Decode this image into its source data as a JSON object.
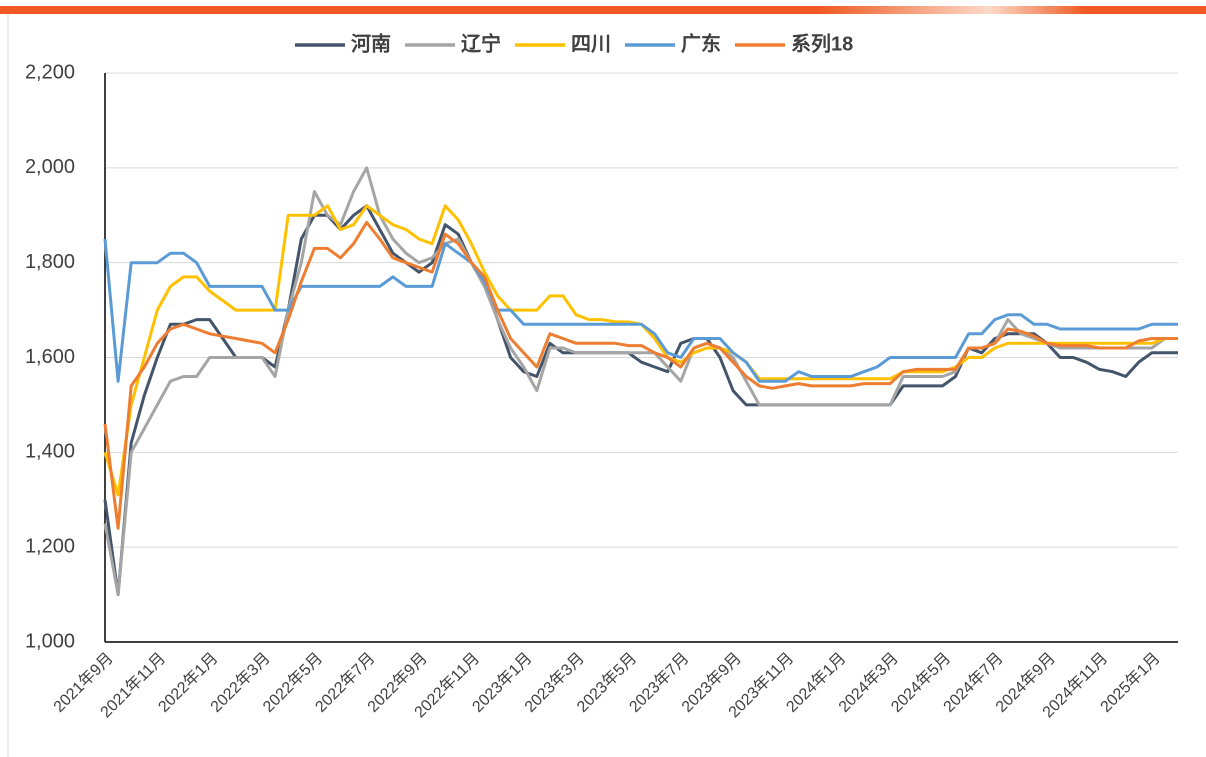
{
  "chart_data": {
    "type": "line",
    "categories": [
      "2021年9月",
      null,
      null,
      null,
      "2021年11月",
      null,
      null,
      null,
      "2022年1月",
      null,
      null,
      null,
      "2022年3月",
      null,
      null,
      null,
      "2022年5月",
      null,
      null,
      null,
      "2022年7月",
      null,
      null,
      null,
      "2022年9月",
      null,
      null,
      null,
      "2022年11月",
      null,
      null,
      null,
      "2023年1月",
      null,
      null,
      null,
      "2023年3月",
      null,
      null,
      null,
      "2023年5月",
      null,
      null,
      null,
      "2023年7月",
      null,
      null,
      null,
      "2023年9月",
      null,
      null,
      null,
      "2023年11月",
      null,
      null,
      null,
      "2024年1月",
      null,
      null,
      null,
      "2024年3月",
      null,
      null,
      null,
      "2024年5月",
      null,
      null,
      null,
      "2024年7月",
      null,
      null,
      null,
      "2024年9月",
      null,
      null,
      null,
      "2024年11月",
      null,
      null,
      null,
      "2025年1月",
      null,
      null
    ],
    "series": [
      {
        "name": "河南",
        "color": "#44546a",
        "values": [
          1300,
          1100,
          1420,
          1520,
          1600,
          1670,
          1670,
          1680,
          1680,
          1640,
          1600,
          1600,
          1600,
          1580,
          1700,
          1850,
          1900,
          1900,
          1870,
          1900,
          1920,
          1870,
          1820,
          1800,
          1780,
          1800,
          1880,
          1860,
          1800,
          1760,
          1680,
          1600,
          1570,
          1560,
          1630,
          1610,
          1610,
          1610,
          1610,
          1610,
          1610,
          1590,
          1580,
          1570,
          1630,
          1640,
          1640,
          1600,
          1530,
          1500,
          1500,
          1500,
          1500,
          1500,
          1500,
          1500,
          1500,
          1500,
          1500,
          1500,
          1500,
          1540,
          1540,
          1540,
          1540,
          1560,
          1620,
          1610,
          1640,
          1650,
          1650,
          1650,
          1630,
          1600,
          1600,
          1590,
          1575,
          1570,
          1560,
          1590,
          1610,
          1610,
          1610
        ]
      },
      {
        "name": "辽宁",
        "color": "#a5a5a5",
        "values": [
          1250,
          1100,
          1400,
          1450,
          1500,
          1550,
          1560,
          1560,
          1600,
          1600,
          1600,
          1600,
          1600,
          1560,
          1700,
          1800,
          1950,
          1900,
          1880,
          1950,
          2000,
          1900,
          1850,
          1820,
          1800,
          1810,
          1840,
          1850,
          1800,
          1750,
          1680,
          1620,
          1580,
          1530,
          1620,
          1620,
          1610,
          1610,
          1610,
          1610,
          1610,
          1610,
          1610,
          1580,
          1550,
          1620,
          1630,
          1620,
          1600,
          1550,
          1500,
          1500,
          1500,
          1500,
          1500,
          1500,
          1500,
          1500,
          1500,
          1500,
          1500,
          1560,
          1560,
          1560,
          1560,
          1570,
          1620,
          1620,
          1630,
          1680,
          1650,
          1640,
          1630,
          1620,
          1620,
          1620,
          1620,
          1620,
          1620,
          1620,
          1620,
          1640,
          1640
        ]
      },
      {
        "name": "四川",
        "color": "#ffc000",
        "values": [
          1400,
          1310,
          1500,
          1600,
          1700,
          1750,
          1770,
          1770,
          1740,
          1720,
          1700,
          1700,
          1700,
          1700,
          1900,
          1900,
          1900,
          1920,
          1870,
          1880,
          1920,
          1900,
          1880,
          1870,
          1850,
          1840,
          1920,
          1890,
          1840,
          1780,
          1730,
          1700,
          1700,
          1700,
          1730,
          1730,
          1690,
          1680,
          1680,
          1675,
          1675,
          1670,
          1640,
          1600,
          1590,
          1610,
          1620,
          1620,
          1610,
          1590,
          1555,
          1555,
          1555,
          1555,
          1555,
          1555,
          1555,
          1555,
          1555,
          1555,
          1555,
          1570,
          1570,
          1570,
          1570,
          1580,
          1600,
          1600,
          1620,
          1630,
          1630,
          1630,
          1630,
          1630,
          1630,
          1630,
          1630,
          1630,
          1630,
          1630,
          1630,
          1640,
          1640
        ]
      },
      {
        "name": "广东",
        "color": "#5b9bd5",
        "values": [
          1850,
          1550,
          1800,
          1800,
          1800,
          1820,
          1820,
          1800,
          1750,
          1750,
          1750,
          1750,
          1750,
          1700,
          1700,
          1750,
          1750,
          1750,
          1750,
          1750,
          1750,
          1750,
          1770,
          1750,
          1750,
          1750,
          1840,
          1820,
          1800,
          1760,
          1700,
          1700,
          1670,
          1670,
          1670,
          1670,
          1670,
          1670,
          1670,
          1670,
          1670,
          1670,
          1650,
          1610,
          1600,
          1640,
          1640,
          1640,
          1610,
          1590,
          1550,
          1550,
          1550,
          1570,
          1560,
          1560,
          1560,
          1560,
          1570,
          1580,
          1600,
          1600,
          1600,
          1600,
          1600,
          1600,
          1650,
          1650,
          1680,
          1690,
          1690,
          1670,
          1670,
          1660,
          1660,
          1660,
          1660,
          1660,
          1660,
          1660,
          1670,
          1670,
          1670
        ]
      },
      {
        "name": "系列18",
        "color": "#ed7d31",
        "values": [
          1460,
          1240,
          1540,
          1580,
          1630,
          1660,
          1670,
          1660,
          1650,
          1645,
          1640,
          1635,
          1630,
          1610,
          1680,
          1760,
          1830,
          1830,
          1810,
          1840,
          1885,
          1850,
          1810,
          1800,
          1790,
          1780,
          1860,
          1840,
          1800,
          1770,
          1700,
          1640,
          1610,
          1580,
          1650,
          1640,
          1630,
          1630,
          1630,
          1630,
          1625,
          1625,
          1610,
          1600,
          1580,
          1620,
          1630,
          1620,
          1590,
          1560,
          1540,
          1535,
          1540,
          1545,
          1540,
          1540,
          1540,
          1540,
          1545,
          1545,
          1545,
          1570,
          1575,
          1575,
          1575,
          1575,
          1620,
          1620,
          1630,
          1660,
          1655,
          1645,
          1630,
          1625,
          1625,
          1625,
          1620,
          1620,
          1620,
          1635,
          1640,
          1640,
          1640
        ]
      }
    ],
    "ylim": [
      1000,
      2200
    ],
    "yticks": [
      {
        "value": 1000,
        "label": "1,000"
      },
      {
        "value": 1200,
        "label": "1,200"
      },
      {
        "value": 1400,
        "label": "1,400"
      },
      {
        "value": 1600,
        "label": "1,600"
      },
      {
        "value": 1800,
        "label": "1,800"
      },
      {
        "value": 2000,
        "label": "2,000"
      },
      {
        "value": 2200,
        "label": "2,200"
      }
    ],
    "grid": true,
    "legend": "top"
  }
}
